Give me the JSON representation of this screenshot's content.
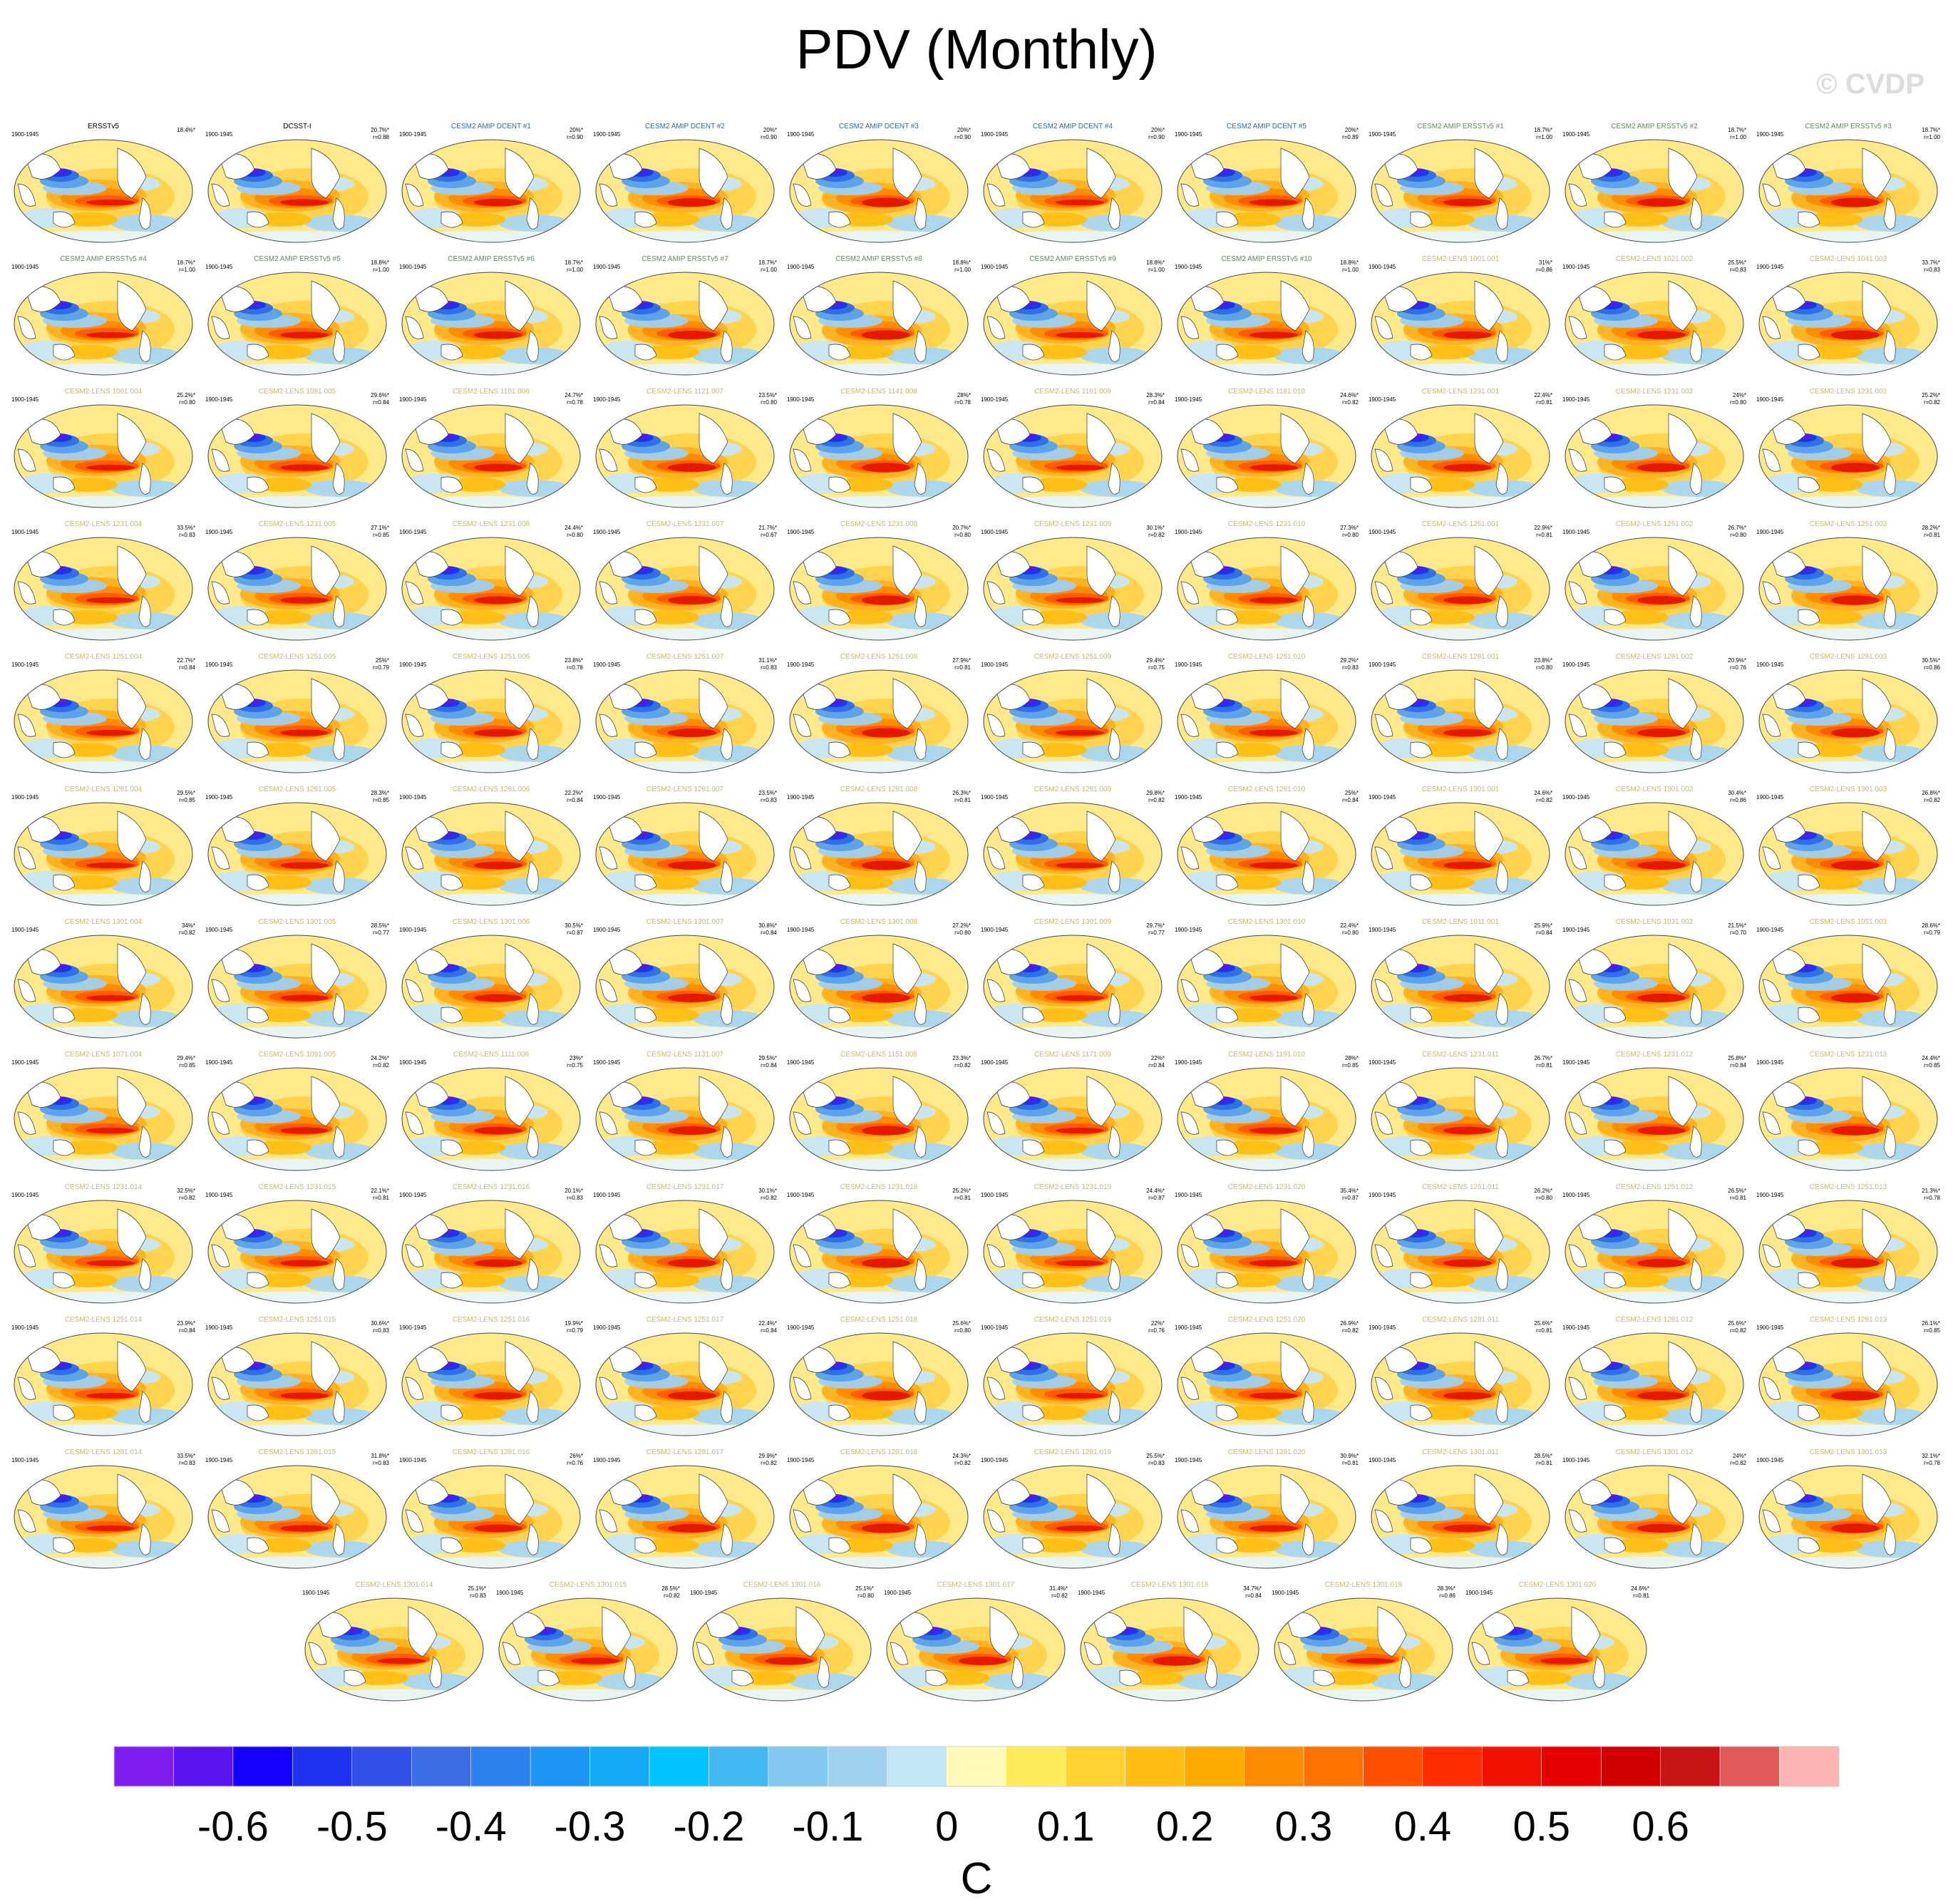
{
  "title": "PDV (Monthly)",
  "watermark": "© CVDP",
  "colors": {
    "obs_title": "#000000",
    "dcent_title": "#1f6fa3",
    "ersst_title": "#5d8a5a",
    "lens_title": "#c9b86a"
  },
  "chart_data": {
    "type": "heatmap",
    "description_kind": "spatial pattern maps",
    "panels": [
      {
        "title": "ERSSTv5",
        "group": "obs",
        "period": "1900-1945",
        "pct": "18.4%*",
        "r": ""
      },
      {
        "title": "DCSST-I",
        "group": "obs",
        "period": "1900-1945",
        "pct": "20.7%*",
        "r": "r=0.88"
      },
      {
        "title": "CESM2 AMIP DCENT #1",
        "group": "dcent",
        "period": "1900-1945",
        "pct": "20%*",
        "r": "r=0.90"
      },
      {
        "title": "CESM2 AMIP DCENT #2",
        "group": "dcent",
        "period": "1900-1945",
        "pct": "20%*",
        "r": "r=0.90"
      },
      {
        "title": "CESM2 AMIP DCENT #3",
        "group": "dcent",
        "period": "1900-1945",
        "pct": "20%*",
        "r": "r=0.90"
      },
      {
        "title": "CESM2 AMIP DCENT #4",
        "group": "dcent",
        "period": "1900-1945",
        "pct": "20%*",
        "r": "r=0.90"
      },
      {
        "title": "CESM2 AMIP DCENT #5",
        "group": "dcent",
        "period": "1900-1945",
        "pct": "20%*",
        "r": "r=0.89"
      },
      {
        "title": "CESM2 AMIP ERSSTv5 #1",
        "group": "ersst",
        "period": "1900-1945",
        "pct": "18.7%*",
        "r": "r=1.00"
      },
      {
        "title": "CESM2 AMIP ERSSTv5 #2",
        "group": "ersst",
        "period": "1900-1945",
        "pct": "18.7%*",
        "r": "r=1.00"
      },
      {
        "title": "CESM2 AMIP ERSSTv5 #3",
        "group": "ersst",
        "period": "1900-1945",
        "pct": "18.7%*",
        "r": "r=1.00"
      },
      {
        "title": "CESM2 AMIP ERSSTv5 #4",
        "group": "ersst",
        "period": "1900-1945",
        "pct": "18.7%*",
        "r": "r=1.00"
      },
      {
        "title": "CESM2 AMIP ERSSTv5 #5",
        "group": "ersst",
        "period": "1900-1945",
        "pct": "18.8%*",
        "r": "r=1.00"
      },
      {
        "title": "CESM2 AMIP ERSSTv5 #6",
        "group": "ersst",
        "period": "1900-1945",
        "pct": "18.7%*",
        "r": "r=1.00"
      },
      {
        "title": "CESM2 AMIP ERSSTv5 #7",
        "group": "ersst",
        "period": "1900-1945",
        "pct": "18.7%*",
        "r": "r=1.00"
      },
      {
        "title": "CESM2 AMIP ERSSTv5 #8",
        "group": "ersst",
        "period": "1900-1945",
        "pct": "18.8%*",
        "r": "r=1.00"
      },
      {
        "title": "CESM2 AMIP ERSSTv5 #9",
        "group": "ersst",
        "period": "1900-1945",
        "pct": "18.8%*",
        "r": "r=1.00"
      },
      {
        "title": "CESM2 AMIP ERSSTv5 #10",
        "group": "ersst",
        "period": "1900-1945",
        "pct": "18.8%*",
        "r": "r=1.00"
      },
      {
        "title": "CESM2-LENS 1001.001",
        "group": "lens",
        "period": "1900-1945",
        "pct": "31%*",
        "r": "r=0.86"
      },
      {
        "title": "CESM2-LENS 1021.002",
        "group": "lens",
        "period": "1900-1945",
        "pct": "25.5%*",
        "r": "r=0.83"
      },
      {
        "title": "CESM2-LENS 1041.003",
        "group": "lens",
        "period": "1900-1945",
        "pct": "33.7%*",
        "r": "r=0.83"
      },
      {
        "title": "CESM2-LENS 1061.004",
        "group": "lens",
        "period": "1900-1945",
        "pct": "25.2%*",
        "r": "r=0.80"
      },
      {
        "title": "CESM2-LENS 1081.005",
        "group": "lens",
        "period": "1900-1945",
        "pct": "29.6%*",
        "r": "r=0.84"
      },
      {
        "title": "CESM2-LENS 1101.006",
        "group": "lens",
        "period": "1900-1945",
        "pct": "24.7%*",
        "r": "r=0.78"
      },
      {
        "title": "CESM2-LENS 1121.007",
        "group": "lens",
        "period": "1900-1945",
        "pct": "23.5%*",
        "r": "r=0.80"
      },
      {
        "title": "CESM2-LENS 1141.008",
        "group": "lens",
        "period": "1900-1945",
        "pct": "28%*",
        "r": "r=0.78"
      },
      {
        "title": "CESM2-LENS 1161.009",
        "group": "lens",
        "period": "1900-1945",
        "pct": "28.3%*",
        "r": "r=0.84"
      },
      {
        "title": "CESM2-LENS 1181.010",
        "group": "lens",
        "period": "1900-1945",
        "pct": "24.6%*",
        "r": "r=0.82"
      },
      {
        "title": "CESM2-LENS 1231.001",
        "group": "lens",
        "period": "1900-1945",
        "pct": "22.4%*",
        "r": "r=0.81"
      },
      {
        "title": "CESM2-LENS 1231.002",
        "group": "lens",
        "period": "1900-1945",
        "pct": "24%*",
        "r": "r=0.80"
      },
      {
        "title": "CESM2-LENS 1231.003",
        "group": "lens",
        "period": "1900-1945",
        "pct": "25.2%*",
        "r": "r=0.82"
      },
      {
        "title": "CESM2-LENS 1231.004",
        "group": "lens",
        "period": "1900-1945",
        "pct": "33.5%*",
        "r": "r=0.83"
      },
      {
        "title": "CESM2-LENS 1231.005",
        "group": "lens",
        "period": "1900-1945",
        "pct": "27.1%*",
        "r": "r=0.85"
      },
      {
        "title": "CESM2-LENS 1231.006",
        "group": "lens",
        "period": "1900-1945",
        "pct": "24.4%*",
        "r": "r=0.80"
      },
      {
        "title": "CESM2-LENS 1231.007",
        "group": "lens",
        "period": "1900-1945",
        "pct": "21.7%*",
        "r": "r=0.67"
      },
      {
        "title": "CESM2-LENS 1231.008",
        "group": "lens",
        "period": "1900-1945",
        "pct": "20.7%*",
        "r": "r=0.80"
      },
      {
        "title": "CESM2-LENS 1231.009",
        "group": "lens",
        "period": "1900-1945",
        "pct": "30.1%*",
        "r": "r=0.82"
      },
      {
        "title": "CESM2-LENS 1231.010",
        "group": "lens",
        "period": "1900-1945",
        "pct": "27.3%*",
        "r": "r=0.80"
      },
      {
        "title": "CESM2-LENS 1251.001",
        "group": "lens",
        "period": "1900-1945",
        "pct": "22.9%*",
        "r": "r=0.81"
      },
      {
        "title": "CESM2-LENS 1251.002",
        "group": "lens",
        "period": "1900-1945",
        "pct": "26.7%*",
        "r": "r=0.80"
      },
      {
        "title": "CESM2-LENS 1251.003",
        "group": "lens",
        "period": "1900-1945",
        "pct": "28.2%*",
        "r": "r=0.81"
      },
      {
        "title": "CESM2-LENS 1251.004",
        "group": "lens",
        "period": "1900-1945",
        "pct": "22.7%*",
        "r": "r=0.84"
      },
      {
        "title": "CESM2-LENS 1251.005",
        "group": "lens",
        "period": "1900-1945",
        "pct": "25%*",
        "r": "r=0.79"
      },
      {
        "title": "CESM2-LENS 1251.006",
        "group": "lens",
        "period": "1900-1945",
        "pct": "23.8%*",
        "r": "r=0.78"
      },
      {
        "title": "CESM2-LENS 1251.007",
        "group": "lens",
        "period": "1900-1945",
        "pct": "31.1%*",
        "r": "r=0.83"
      },
      {
        "title": "CESM2-LENS 1251.008",
        "group": "lens",
        "period": "1900-1945",
        "pct": "27.9%*",
        "r": "r=0.81"
      },
      {
        "title": "CESM2-LENS 1251.009",
        "group": "lens",
        "period": "1900-1945",
        "pct": "29.4%*",
        "r": "r=0.75"
      },
      {
        "title": "CESM2-LENS 1251.010",
        "group": "lens",
        "period": "1900-1945",
        "pct": "29.2%*",
        "r": "r=0.83"
      },
      {
        "title": "CESM2-LENS 1281.001",
        "group": "lens",
        "period": "1900-1945",
        "pct": "23.8%*",
        "r": "r=0.80"
      },
      {
        "title": "CESM2-LENS 1281.002",
        "group": "lens",
        "period": "1900-1945",
        "pct": "20.9%*",
        "r": "r=0.76"
      },
      {
        "title": "CESM2-LENS 1281.003",
        "group": "lens",
        "period": "1900-1945",
        "pct": "30.5%*",
        "r": "r=0.86"
      },
      {
        "title": "CESM2-LENS 1281.004",
        "group": "lens",
        "period": "1900-1945",
        "pct": "29.5%*",
        "r": "r=0.85"
      },
      {
        "title": "CESM2-LENS 1281.005",
        "group": "lens",
        "period": "1900-1945",
        "pct": "28.3%*",
        "r": "r=0.85"
      },
      {
        "title": "CESM2-LENS 1281.006",
        "group": "lens",
        "period": "1900-1945",
        "pct": "22.2%*",
        "r": "r=0.84"
      },
      {
        "title": "CESM2-LENS 1281.007",
        "group": "lens",
        "period": "1900-1945",
        "pct": "23.5%*",
        "r": "r=0.83"
      },
      {
        "title": "CESM2-LENS 1281.008",
        "group": "lens",
        "period": "1900-1945",
        "pct": "26.3%*",
        "r": "r=0.81"
      },
      {
        "title": "CESM2-LENS 1281.009",
        "group": "lens",
        "period": "1900-1945",
        "pct": "29.8%*",
        "r": "r=0.82"
      },
      {
        "title": "CESM2-LENS 1281.010",
        "group": "lens",
        "period": "1900-1945",
        "pct": "25%*",
        "r": "r=0.84"
      },
      {
        "title": "CESM2-LENS 1301.001",
        "group": "lens",
        "period": "1900-1945",
        "pct": "24.6%*",
        "r": "r=0.82"
      },
      {
        "title": "CESM2-LENS 1301.002",
        "group": "lens",
        "period": "1900-1945",
        "pct": "30.4%*",
        "r": "r=0.86"
      },
      {
        "title": "CESM2-LENS 1301.003",
        "group": "lens",
        "period": "1900-1945",
        "pct": "26.8%*",
        "r": "r=0.82"
      },
      {
        "title": "CESM2-LENS 1301.004",
        "group": "lens",
        "period": "1900-1945",
        "pct": "34%*",
        "r": "r=0.82"
      },
      {
        "title": "CESM2-LENS 1301.005",
        "group": "lens",
        "period": "1900-1945",
        "pct": "28.5%*",
        "r": "r=0.77"
      },
      {
        "title": "CESM2-LENS 1301.006",
        "group": "lens",
        "period": "1900-1945",
        "pct": "30.5%*",
        "r": "r=0.87"
      },
      {
        "title": "CESM2-LENS 1301.007",
        "group": "lens",
        "period": "1900-1945",
        "pct": "30.8%*",
        "r": "r=0.84"
      },
      {
        "title": "CESM2-LENS 1301.008",
        "group": "lens",
        "period": "1900-1945",
        "pct": "27.2%*",
        "r": "r=0.80"
      },
      {
        "title": "CESM2-LENS 1301.009",
        "group": "lens",
        "period": "1900-1945",
        "pct": "29.7%*",
        "r": "r=0.77"
      },
      {
        "title": "CESM2-LENS 1301.010",
        "group": "lens",
        "period": "1900-1945",
        "pct": "22.4%*",
        "r": "r=0.80"
      },
      {
        "title": "CESM2-LENS 1011.001",
        "group": "lens",
        "period": "1900-1945",
        "pct": "25.9%*",
        "r": "r=0.84"
      },
      {
        "title": "CESM2-LENS 1031.002",
        "group": "lens",
        "period": "1900-1945",
        "pct": "21.5%*",
        "r": "r=0.70"
      },
      {
        "title": "CESM2-LENS 1051.003",
        "group": "lens",
        "period": "1900-1945",
        "pct": "28.6%*",
        "r": "r=0.79"
      },
      {
        "title": "CESM2-LENS 1071.004",
        "group": "lens",
        "period": "1900-1945",
        "pct": "29.4%*",
        "r": "r=0.85"
      },
      {
        "title": "CESM2-LENS 1091.005",
        "group": "lens",
        "period": "1900-1945",
        "pct": "24.2%*",
        "r": "r=0.82"
      },
      {
        "title": "CESM2-LENS 1111.006",
        "group": "lens",
        "period": "1900-1945",
        "pct": "23%*",
        "r": "r=0.75"
      },
      {
        "title": "CESM2-LENS 1131.007",
        "group": "lens",
        "period": "1900-1945",
        "pct": "29.5%*",
        "r": "r=0.84"
      },
      {
        "title": "CESM2-LENS 1151.008",
        "group": "lens",
        "period": "1900-1945",
        "pct": "23.3%*",
        "r": "r=0.82"
      },
      {
        "title": "CESM2-LENS 1171.009",
        "group": "lens",
        "period": "1900-1945",
        "pct": "22%*",
        "r": "r=0.84"
      },
      {
        "title": "CESM2-LENS 1191.010",
        "group": "lens",
        "period": "1900-1945",
        "pct": "28%*",
        "r": "r=0.85"
      },
      {
        "title": "CESM2-LENS 1231.011",
        "group": "lens",
        "period": "1900-1945",
        "pct": "26.7%*",
        "r": "r=0.81"
      },
      {
        "title": "CESM2-LENS 1231.012",
        "group": "lens",
        "period": "1900-1945",
        "pct": "25.8%*",
        "r": "r=0.84"
      },
      {
        "title": "CESM2-LENS 1231.013",
        "group": "lens",
        "period": "1900-1945",
        "pct": "24.4%*",
        "r": "r=0.85"
      },
      {
        "title": "CESM2-LENS 1231.014",
        "group": "lens",
        "period": "1900-1945",
        "pct": "32.5%*",
        "r": "r=0.82"
      },
      {
        "title": "CESM2-LENS 1231.015",
        "group": "lens",
        "period": "1900-1945",
        "pct": "22.1%*",
        "r": "r=0.81"
      },
      {
        "title": "CESM2-LENS 1231.016",
        "group": "lens",
        "period": "1900-1945",
        "pct": "20.1%*",
        "r": "r=0.83"
      },
      {
        "title": "CESM2-LENS 1231.017",
        "group": "lens",
        "period": "1900-1945",
        "pct": "30.1%*",
        "r": "r=0.82"
      },
      {
        "title": "CESM2-LENS 1231.018",
        "group": "lens",
        "period": "1900-1945",
        "pct": "25.2%*",
        "r": "r=0.81"
      },
      {
        "title": "CESM2-LENS 1231.019",
        "group": "lens",
        "period": "1900-1945",
        "pct": "24.4%*",
        "r": "r=0.87"
      },
      {
        "title": "CESM2-LENS 1231.020",
        "group": "lens",
        "period": "1900-1945",
        "pct": "35.4%*",
        "r": "r=0.87"
      },
      {
        "title": "CESM2-LENS 1251.011",
        "group": "lens",
        "period": "1900-1945",
        "pct": "26.2%*",
        "r": "r=0.80"
      },
      {
        "title": "CESM2-LENS 1251.012",
        "group": "lens",
        "period": "1900-1945",
        "pct": "26.5%*",
        "r": "r=0.81"
      },
      {
        "title": "CESM2-LENS 1251.013",
        "group": "lens",
        "period": "1900-1945",
        "pct": "21.3%*",
        "r": "r=0.78"
      },
      {
        "title": "CESM2-LENS 1251.014",
        "group": "lens",
        "period": "1900-1945",
        "pct": "23.9%*",
        "r": "r=0.84"
      },
      {
        "title": "CESM2-LENS 1251.015",
        "group": "lens",
        "period": "1900-1945",
        "pct": "30.6%*",
        "r": "r=0.83"
      },
      {
        "title": "CESM2-LENS 1251.016",
        "group": "lens",
        "period": "1900-1945",
        "pct": "19.9%*",
        "r": "r=0.79"
      },
      {
        "title": "CESM2-LENS 1251.017",
        "group": "lens",
        "period": "1900-1945",
        "pct": "22.4%*",
        "r": "r=0.84"
      },
      {
        "title": "CESM2-LENS 1251.018",
        "group": "lens",
        "period": "1900-1945",
        "pct": "25.6%*",
        "r": "r=0.80"
      },
      {
        "title": "CESM2-LENS 1251.019",
        "group": "lens",
        "period": "1900-1945",
        "pct": "22%*",
        "r": "r=0.76"
      },
      {
        "title": "CESM2-LENS 1251.020",
        "group": "lens",
        "period": "1900-1945",
        "pct": "26.9%*",
        "r": "r=0.82"
      },
      {
        "title": "CESM2-LENS 1281.011",
        "group": "lens",
        "period": "1900-1945",
        "pct": "25.6%*",
        "r": "r=0.81"
      },
      {
        "title": "CESM2-LENS 1281.012",
        "group": "lens",
        "period": "1900-1945",
        "pct": "25.6%*",
        "r": "r=0.82"
      },
      {
        "title": "CESM2-LENS 1281.013",
        "group": "lens",
        "period": "1900-1945",
        "pct": "26.1%*",
        "r": "r=0.85"
      },
      {
        "title": "CESM2-LENS 1281.014",
        "group": "lens",
        "period": "1900-1945",
        "pct": "33.5%*",
        "r": "r=0.83"
      },
      {
        "title": "CESM2-LENS 1281.015",
        "group": "lens",
        "period": "1900-1945",
        "pct": "31.8%*",
        "r": "r=0.83"
      },
      {
        "title": "CESM2-LENS 1281.016",
        "group": "lens",
        "period": "1900-1945",
        "pct": "26%*",
        "r": "r=0.76"
      },
      {
        "title": "CESM2-LENS 1281.017",
        "group": "lens",
        "period": "1900-1945",
        "pct": "29.9%*",
        "r": "r=0.82"
      },
      {
        "title": "CESM2-LENS 1281.018",
        "group": "lens",
        "period": "1900-1945",
        "pct": "24.3%*",
        "r": "r=0.82"
      },
      {
        "title": "CESM2-LENS 1281.019",
        "group": "lens",
        "period": "1900-1945",
        "pct": "25.5%*",
        "r": "r=0.83"
      },
      {
        "title": "CESM2-LENS 1281.020",
        "group": "lens",
        "period": "1900-1945",
        "pct": "30.9%*",
        "r": "r=0.81"
      },
      {
        "title": "CESM2-LENS 1301.011",
        "group": "lens",
        "period": "1900-1945",
        "pct": "28.5%*",
        "r": "r=0.81"
      },
      {
        "title": "CESM2-LENS 1301.012",
        "group": "lens",
        "period": "1900-1945",
        "pct": "24%*",
        "r": "r=0.82"
      },
      {
        "title": "CESM2-LENS 1301.013",
        "group": "lens",
        "period": "1900-1945",
        "pct": "32.1%*",
        "r": "r=0.78"
      },
      {
        "title": "CESM2-LENS 1301.014",
        "group": "lens",
        "period": "1900-1945",
        "pct": "25.1%*",
        "r": "r=0.83"
      },
      {
        "title": "CESM2-LENS 1301.015",
        "group": "lens",
        "period": "1900-1945",
        "pct": "28.5%*",
        "r": "r=0.82"
      },
      {
        "title": "CESM2-LENS 1301.016",
        "group": "lens",
        "period": "1900-1945",
        "pct": "25.1%*",
        "r": "r=0.80"
      },
      {
        "title": "CESM2-LENS 1301.017",
        "group": "lens",
        "period": "1900-1945",
        "pct": "31.4%*",
        "r": "r=0.82"
      },
      {
        "title": "CESM2-LENS 1301.018",
        "group": "lens",
        "period": "1900-1945",
        "pct": "34.7%*",
        "r": "r=0.84"
      },
      {
        "title": "CESM2-LENS 1301.019",
        "group": "lens",
        "period": "1900-1945",
        "pct": "28.3%*",
        "r": "r=0.86"
      },
      {
        "title": "CESM2-LENS 1301.020",
        "group": "lens",
        "period": "1900-1945",
        "pct": "24.6%*",
        "r": "r=0.81"
      }
    ],
    "colorbar": {
      "unit": "C",
      "ticks": [
        "-0.6",
        "-0.5",
        "-0.4",
        "-0.3",
        "-0.2",
        "-0.1",
        "0",
        "0.1",
        "0.2",
        "0.3",
        "0.4",
        "0.5",
        "0.6"
      ],
      "colors": [
        "#7e1ef0",
        "#5a14f0",
        "#1400ff",
        "#1e32f0",
        "#3250e6",
        "#3c6ee6",
        "#2d82f0",
        "#1e96f5",
        "#14aaf5",
        "#00c3ff",
        "#41b9f0",
        "#82c8f0",
        "#a0d2f0",
        "#c3e6f5",
        "#fffab9",
        "#ffeb5a",
        "#ffd232",
        "#ffbe14",
        "#ffaa00",
        "#ff8c00",
        "#ff7300",
        "#ff5000",
        "#ff2d00",
        "#f01400",
        "#e60000",
        "#d20000",
        "#c81414",
        "#e15a5a",
        "#ffb4b4"
      ]
    }
  }
}
